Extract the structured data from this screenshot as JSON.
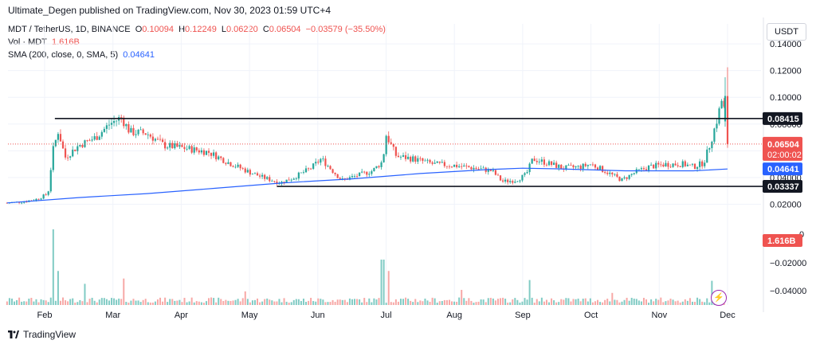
{
  "header": {
    "publisher_line": "Ultimate_Degen published on TradingView.com, Nov 30, 2023 01:59 UTC+4"
  },
  "legend": {
    "symbol": "MDT / TetherUS, 1D, BINANCE",
    "o_label": "O",
    "o_value": "0.10094",
    "h_label": "H",
    "h_value": "0.12249",
    "l_label": "L",
    "l_value": "0.06220",
    "c_label": "C",
    "c_value": "0.06504",
    "change": "−0.03579 (−35.50%)",
    "vol_label": "Vol · MDT",
    "vol_value": "1.616B",
    "sma_label": "SMA (200, close, 0, SMA, 5)",
    "sma_value": "0.04641"
  },
  "currency_button": "USDT",
  "footer": {
    "brand": "TradingView"
  },
  "colors": {
    "up": "#26a69a",
    "down": "#ef5350",
    "sma": "#2962ff",
    "level_line": "#131722",
    "vol_up": "#80cbc4",
    "vol_down": "#f7a8a6"
  },
  "chart_data": {
    "type": "candlestick",
    "symbol": "MDT/USDT",
    "interval": "1D",
    "exchange": "BINANCE",
    "x_ticks": [
      "Feb",
      "Mar",
      "Apr",
      "May",
      "Jun",
      "Jul",
      "Aug",
      "Sep",
      "Oct",
      "Nov",
      "Dec"
    ],
    "y_ticks": [
      "0.14000",
      "0.12000",
      "0.10000",
      "0.08000",
      "0.06000",
      "0.04000",
      "0.02000"
    ],
    "ylim": [
      0.006,
      0.146
    ],
    "volume_axis_ticks": [
      "0",
      "−0.02000",
      "−0.04000"
    ],
    "horizontal_levels": [
      {
        "label": "0.08415",
        "value": 0.08415,
        "from_month_index": 0.15
      },
      {
        "label": "0.03337",
        "value": 0.03337,
        "from_month_index": 3.4
      }
    ],
    "price_badges": [
      {
        "label": "0.06504",
        "sub": "02:00:02",
        "value": 0.06504,
        "kind": "last"
      },
      {
        "label": "0.04641",
        "value": 0.04641,
        "kind": "sma"
      },
      {
        "label": "1.616B",
        "kind": "volume"
      }
    ],
    "ohlc_last": {
      "open": 0.10094,
      "high": 0.12249,
      "low": 0.0622,
      "close": 0.06504
    },
    "sma_200": {
      "last": 0.04641
    },
    "trend_points": [
      {
        "m": -0.55,
        "c": 0.021
      },
      {
        "m": -0.3,
        "c": 0.022
      },
      {
        "m": -0.1,
        "c": 0.024
      },
      {
        "m": 0.05,
        "c": 0.028
      },
      {
        "m": 0.12,
        "c": 0.06
      },
      {
        "m": 0.2,
        "c": 0.075
      },
      {
        "m": 0.3,
        "c": 0.055
      },
      {
        "m": 0.5,
        "c": 0.064
      },
      {
        "m": 0.75,
        "c": 0.07
      },
      {
        "m": 0.95,
        "c": 0.08
      },
      {
        "m": 1.12,
        "c": 0.085
      },
      {
        "m": 1.25,
        "c": 0.074
      },
      {
        "m": 1.5,
        "c": 0.073
      },
      {
        "m": 1.75,
        "c": 0.064
      },
      {
        "m": 2.05,
        "c": 0.062
      },
      {
        "m": 2.4,
        "c": 0.059
      },
      {
        "m": 2.7,
        "c": 0.051
      },
      {
        "m": 3.0,
        "c": 0.044
      },
      {
        "m": 3.2,
        "c": 0.04
      },
      {
        "m": 3.45,
        "c": 0.036
      },
      {
        "m": 3.65,
        "c": 0.04
      },
      {
        "m": 3.9,
        "c": 0.047
      },
      {
        "m": 4.05,
        "c": 0.054
      },
      {
        "m": 4.2,
        "c": 0.046
      },
      {
        "m": 4.35,
        "c": 0.038
      },
      {
        "m": 4.55,
        "c": 0.041
      },
      {
        "m": 4.8,
        "c": 0.045
      },
      {
        "m": 4.95,
        "c": 0.052
      },
      {
        "m": 5.0,
        "c": 0.072
      },
      {
        "m": 5.15,
        "c": 0.056
      },
      {
        "m": 5.4,
        "c": 0.054
      },
      {
        "m": 5.7,
        "c": 0.05
      },
      {
        "m": 6.0,
        "c": 0.049
      },
      {
        "m": 6.3,
        "c": 0.047
      },
      {
        "m": 6.55,
        "c": 0.045
      },
      {
        "m": 6.7,
        "c": 0.037
      },
      {
        "m": 6.9,
        "c": 0.038
      },
      {
        "m": 7.05,
        "c": 0.042
      },
      {
        "m": 7.15,
        "c": 0.054
      },
      {
        "m": 7.35,
        "c": 0.051
      },
      {
        "m": 7.6,
        "c": 0.047
      },
      {
        "m": 7.85,
        "c": 0.048
      },
      {
        "m": 8.0,
        "c": 0.05
      },
      {
        "m": 8.2,
        "c": 0.045
      },
      {
        "m": 8.45,
        "c": 0.038
      },
      {
        "m": 8.65,
        "c": 0.044
      },
      {
        "m": 8.85,
        "c": 0.048
      },
      {
        "m": 9.1,
        "c": 0.05
      },
      {
        "m": 9.35,
        "c": 0.05
      },
      {
        "m": 9.5,
        "c": 0.048
      },
      {
        "m": 9.65,
        "c": 0.051
      },
      {
        "m": 9.75,
        "c": 0.066
      },
      {
        "m": 9.85,
        "c": 0.084
      },
      {
        "m": 9.93,
        "c": 0.101
      },
      {
        "m": 10.0,
        "c": 0.065
      }
    ],
    "sma_points": [
      {
        "m": -0.55,
        "v": 0.021
      },
      {
        "m": 0.5,
        "v": 0.025
      },
      {
        "m": 1.5,
        "v": 0.028
      },
      {
        "m": 2.5,
        "v": 0.032
      },
      {
        "m": 3.5,
        "v": 0.036
      },
      {
        "m": 4.5,
        "v": 0.039
      },
      {
        "m": 5.5,
        "v": 0.043
      },
      {
        "m": 6.5,
        "v": 0.046
      },
      {
        "m": 7.0,
        "v": 0.047
      },
      {
        "m": 7.5,
        "v": 0.0465
      },
      {
        "m": 8.5,
        "v": 0.045
      },
      {
        "m": 9.0,
        "v": 0.045
      },
      {
        "m": 9.5,
        "v": 0.045
      },
      {
        "m": 10.0,
        "v": 0.04641
      }
    ],
    "volume_spikes": [
      {
        "m": 0.12,
        "v": 1.0
      },
      {
        "m": 0.2,
        "v": 0.45
      },
      {
        "m": 1.15,
        "v": 0.35
      },
      {
        "m": 0.6,
        "v": 0.28
      },
      {
        "m": 4.95,
        "v": 0.6
      },
      {
        "m": 5.05,
        "v": 0.45
      },
      {
        "m": 7.1,
        "v": 0.33
      },
      {
        "m": 9.78,
        "v": 0.32
      },
      {
        "m": 10.0,
        "v": 1.0
      },
      {
        "m": 2.95,
        "v": 0.18
      },
      {
        "m": 6.1,
        "v": 0.2
      },
      {
        "m": 8.3,
        "v": 0.16
      }
    ]
  }
}
